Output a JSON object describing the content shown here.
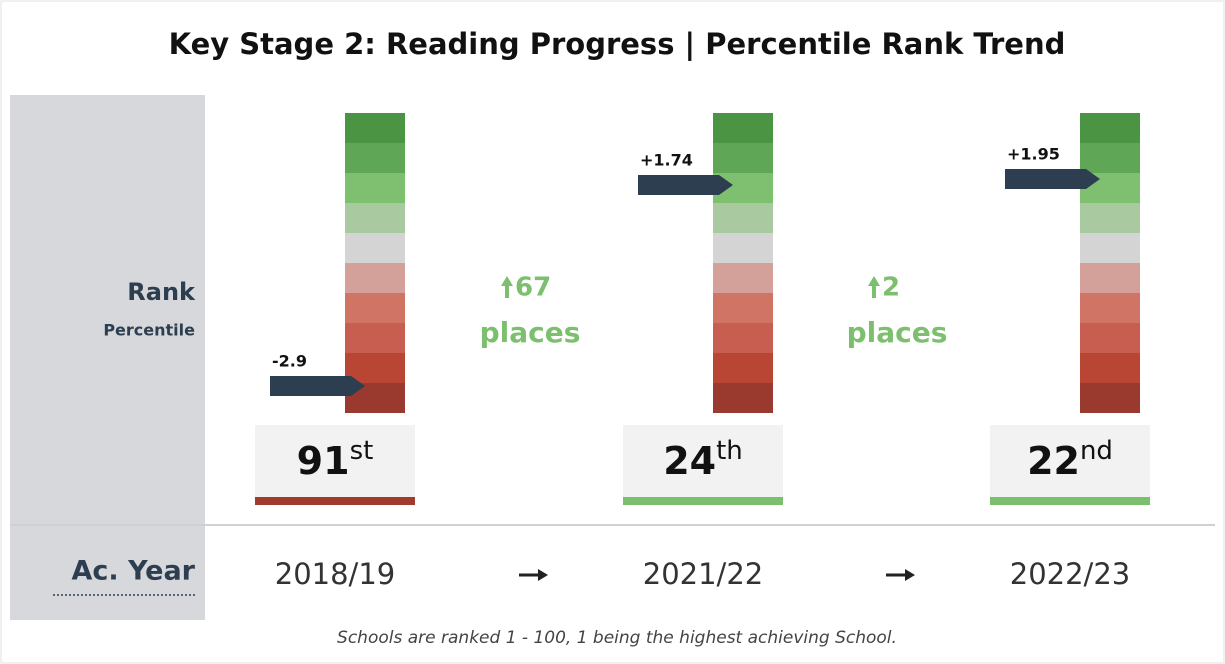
{
  "header": {
    "title": "Key Stage 2: Reading Progress | Percentile Rank Trend"
  },
  "row_labels": {
    "rank": "Rank",
    "percentile": "Percentile",
    "year": "Ac. Year"
  },
  "columns": [
    {
      "score": "-2.9",
      "rank": 91,
      "suffix": "st",
      "year": "2018/19",
      "underline_color": "#a13b30"
    },
    {
      "score": "+1.74",
      "rank": 24,
      "suffix": "th",
      "year": "2021/22",
      "underline_color": "#7cbf6e"
    },
    {
      "score": "+1.95",
      "rank": 22,
      "suffix": "nd",
      "year": "2022/23",
      "underline_color": "#7cbf6e"
    }
  ],
  "changes": [
    {
      "amount": "67",
      "unit": "places"
    },
    {
      "amount": "2",
      "unit": "places"
    }
  ],
  "footnote": "Schools are ranked 1 - 100, 1 being the highest achieving School."
}
